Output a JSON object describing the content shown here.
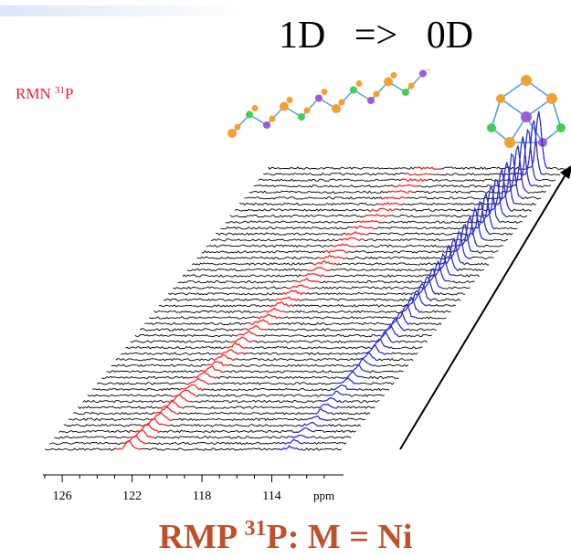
{
  "header": {
    "title_left": "1D",
    "title_arrow": "=>",
    "title_right": "0D",
    "nmr_label": "RMN",
    "nmr_isotope": "31",
    "nmr_nucleus": "P"
  },
  "footer": {
    "prefix": "RMP ",
    "isotope": "31",
    "rest": "P: M = Ni",
    "color": "#c0502a"
  },
  "structures": {
    "left": "chain-structure-1d",
    "right": "cluster-structure-0d"
  },
  "colors": {
    "label_red": "#e8203a",
    "trace_black": "#000000",
    "peak_red": "#ff2020",
    "peak_blue": "#2a2adc"
  },
  "chart_data": {
    "type": "stacked-1d-spectra",
    "xlabel": "ppm",
    "x_ticks": [
      126,
      122,
      118,
      114
    ],
    "xlim": [
      127,
      110
    ],
    "x_reversed": true,
    "trace_count": 48,
    "series": [
      {
        "name": "",
        "color": "#ff2020",
        "peak_ppm_start": 122.2,
        "peak_ppm_end": 117.9,
        "intensity_start": 0.25,
        "intensity_end": 0.0
      },
      {
        "name": "",
        "color": "#2a2adc",
        "peak_ppm_start": 113.0,
        "peak_ppm_end": 111.5,
        "intensity_start": 0.05,
        "intensity_end": 1.0
      }
    ]
  }
}
